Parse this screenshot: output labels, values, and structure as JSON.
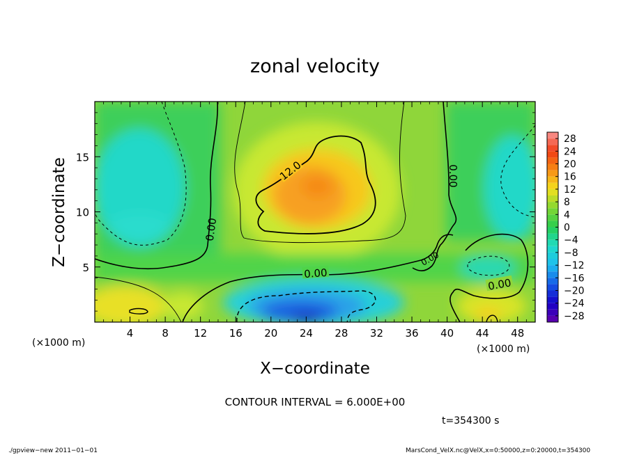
{
  "chart_data": {
    "type": "heatmap",
    "title": "zonal velocity",
    "xlabel": "X−coordinate",
    "ylabel": "Z−coordinate",
    "x_unit": "(×1000 m)",
    "y_unit": "(×1000 m)",
    "xlim": [
      0,
      50
    ],
    "ylim": [
      0,
      20
    ],
    "x_ticks": [
      4,
      8,
      12,
      16,
      20,
      24,
      28,
      32,
      36,
      40,
      44,
      48
    ],
    "x_tick_labels": [
      "4",
      "8",
      "12",
      "16",
      "20",
      "24",
      "28",
      "32",
      "36",
      "40",
      "44",
      "48"
    ],
    "y_ticks": [
      5,
      10,
      15
    ],
    "y_tick_labels": [
      "5",
      "10",
      "15"
    ],
    "colorbar": {
      "levels": [
        -30,
        -28,
        -26,
        -24,
        -22,
        -20,
        -18,
        -16,
        -14,
        -12,
        -10,
        -8,
        -6,
        -4,
        -2,
        0,
        2,
        4,
        6,
        8,
        10,
        12,
        14,
        16,
        18,
        20,
        22,
        24,
        26,
        28,
        30
      ],
      "tick_values": [
        -28,
        -24,
        -20,
        -16,
        -12,
        -8,
        -4,
        0,
        4,
        8,
        12,
        16,
        20,
        24,
        28
      ],
      "tick_labels": [
        "−28",
        "−24",
        "−20",
        "−16",
        "−12",
        "−8",
        "−4",
        "0",
        "4",
        "8",
        "12",
        "16",
        "20",
        "24",
        "28"
      ]
    },
    "contour_labels": [
      {
        "text": "12.0",
        "x": 22.5,
        "y": 13.5
      },
      {
        "text": "0.00",
        "x": 13.3,
        "y": 8.5
      },
      {
        "text": "0.00",
        "x": 25.0,
        "y": 4.3
      },
      {
        "text": "0.00",
        "x": 40.5,
        "y": 13.5
      },
      {
        "text": "0.00",
        "x": 46.0,
        "y": 3.3
      },
      {
        "text": "0.00",
        "x": 37.5,
        "y": 5.3
      }
    ],
    "contour_interval_text": "CONTOUR INTERVAL = 6.000E+00",
    "time_text": "t=354300 s",
    "footer_left": "./gpview−new   2011−01−01",
    "footer_right": "MarsCond_VelX.nc@VelX,x=0:50000,z=0:20000,t=354300"
  }
}
